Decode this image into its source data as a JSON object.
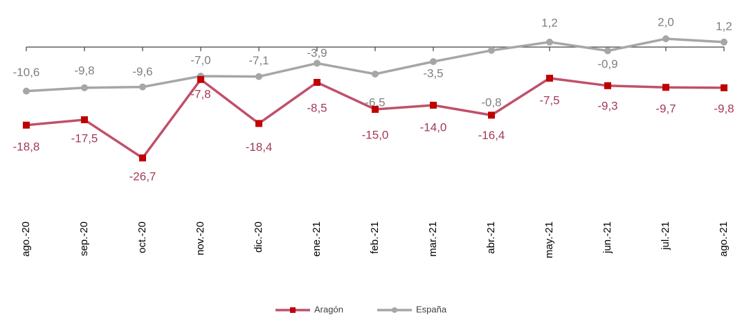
{
  "chart_data": {
    "type": "line",
    "categories": [
      "ago.-20",
      "sep.-20",
      "oct.-20",
      "nov.-20",
      "dic.-20",
      "ene.-21",
      "feb.-21",
      "mar.-21",
      "abr.-21",
      "may.-21",
      "jun.-21",
      "jul.-21",
      "ago.-21"
    ],
    "series": [
      {
        "name": "Aragón",
        "color": "#c0506a",
        "marker_color": "#c00000",
        "values": [
          -18.8,
          -17.5,
          -26.7,
          -7.8,
          -18.4,
          -8.5,
          -15.0,
          -14.0,
          -16.4,
          -7.5,
          -9.3,
          -9.7,
          -9.8
        ],
        "value_labels": [
          "-18,8",
          "-17,5",
          "-26,7",
          "-7,8",
          "-18,4",
          "-8,5",
          "-15,0",
          "-14,0",
          "-16,4",
          "-7,5",
          "-9,3",
          "-9,7",
          "-9,8"
        ]
      },
      {
        "name": "España",
        "color": "#a6a6a6",
        "marker_color": "#a6a6a6",
        "values": [
          -10.6,
          -9.8,
          -9.6,
          -7.0,
          -7.1,
          -3.9,
          -6.5,
          -3.5,
          -0.8,
          1.2,
          -0.9,
          2.0,
          1.2
        ],
        "value_labels": [
          "-10,6",
          "-9,8",
          "-9,6",
          "-7,0",
          "-7,1",
          "-3,9",
          "-6,5",
          "-3,5",
          "-0,8",
          "1,2",
          "-0,9",
          "2,0",
          "1,2"
        ]
      }
    ],
    "ylim": [
      -30,
      5
    ],
    "legend": "bottom"
  }
}
